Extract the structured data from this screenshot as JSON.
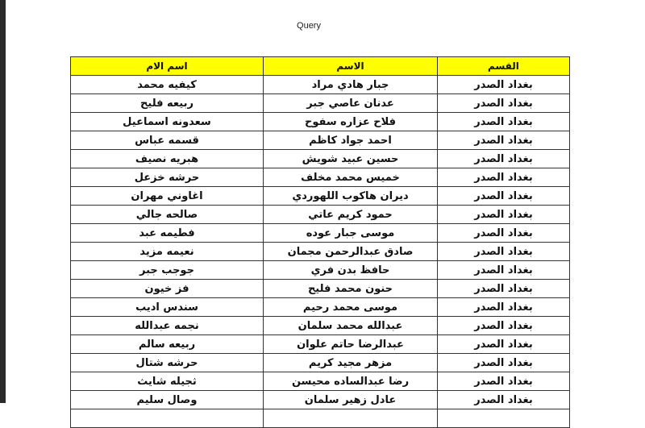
{
  "title": "Query",
  "header_color": "#ffff00",
  "columns": [
    "القسم",
    "الاسم",
    "اسم الام"
  ],
  "rows": [
    [
      "بغداد الصدر",
      "جبار هادي مراد",
      "كيفيه محمد"
    ],
    [
      "بغداد الصدر",
      "عدنان عاصي جبر",
      "ربيعه فليح"
    ],
    [
      "بغداد الصدر",
      "فلاح عزاره سفوح",
      "سعدونه اسماعيل"
    ],
    [
      "بغداد الصدر",
      "احمد جواد كاظم",
      "قسمه عباس"
    ],
    [
      "بغداد الصدر",
      "حسين عبيد شويش",
      "هبريه نصيف"
    ],
    [
      "بغداد الصدر",
      "خميس محمد مخلف",
      "حرشه خزعل"
    ],
    [
      "بغداد الصدر",
      "ديران هاكوب اللهوردي",
      "اغاوني مهران"
    ],
    [
      "بغداد الصدر",
      "حمود كريم عاتي",
      "صالحه جالي"
    ],
    [
      "بغداد الصدر",
      "موسى جبار عوده",
      "فطيمه عبد"
    ],
    [
      "بغداد الصدر",
      "صادق عبدالرحمن مجمان",
      "نعيمه مزيد"
    ],
    [
      "بغداد الصدر",
      "حافظ بدن فري",
      "جوجب جبر"
    ],
    [
      "بغداد الصدر",
      "حنون محمد فليح",
      "فز خيون"
    ],
    [
      "بغداد الصدر",
      "موسى محمد رحيم",
      "سندس اديب"
    ],
    [
      "بغداد الصدر",
      "عبدالله محمد سلمان",
      "نجمه عبدالله"
    ],
    [
      "بغداد الصدر",
      "عبدالرضا حاتم علوان",
      "ربيعه سالم"
    ],
    [
      "بغداد الصدر",
      "مزهر مجيد كريم",
      "حرشه شتال"
    ],
    [
      "بغداد الصدر",
      "رضا عبدالساده محيسن",
      "ثجيله شايث"
    ],
    [
      "بغداد الصدر",
      "عادل زهير سلمان",
      "وصال سليم"
    ]
  ]
}
